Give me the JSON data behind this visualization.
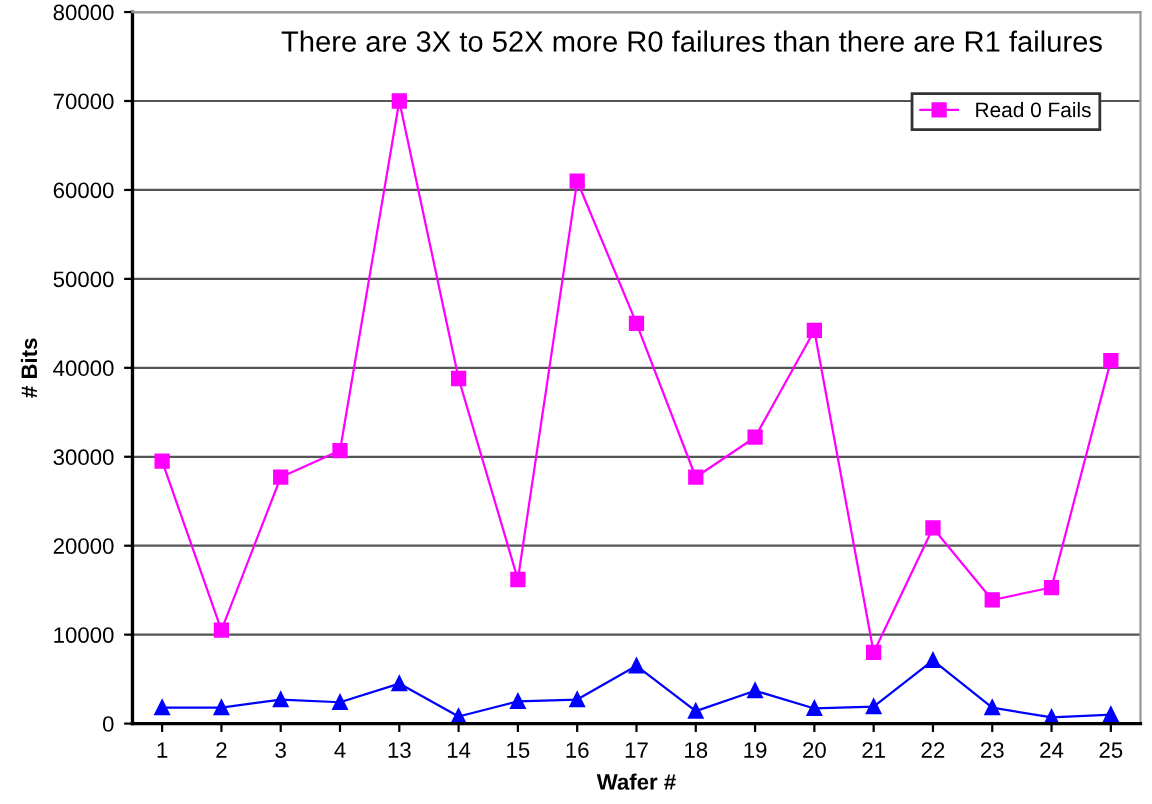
{
  "chart_data": {
    "type": "line",
    "title": "There are 3X to 52X more R0 failures than there are R1 failures",
    "xlabel": "Wafer #",
    "ylabel": "# Bits",
    "categories": [
      "1",
      "2",
      "3",
      "4",
      "13",
      "14",
      "15",
      "16",
      "17",
      "18",
      "19",
      "20",
      "21",
      "22",
      "23",
      "24",
      "25"
    ],
    "series": [
      {
        "name": "Read 0 Fails",
        "color": "#ff00ff",
        "marker": "square",
        "values": [
          29500,
          10500,
          27700,
          30700,
          70000,
          38800,
          16200,
          61000,
          45000,
          27700,
          32200,
          44200,
          8000,
          22000,
          13900,
          15300,
          40800
        ]
      },
      {
        "color": "#0000ff",
        "marker": "triangle",
        "values": [
          1800,
          1800,
          2700,
          2400,
          4500,
          800,
          2500,
          2700,
          6500,
          1400,
          3700,
          1700,
          1900,
          7100,
          1800,
          700,
          1000
        ]
      }
    ],
    "ylim": [
      0,
      80000
    ],
    "yticks": [
      0,
      10000,
      20000,
      30000,
      40000,
      50000,
      60000,
      70000,
      80000
    ],
    "grid": "y",
    "legend": "top right",
    "line_style": "solid"
  }
}
